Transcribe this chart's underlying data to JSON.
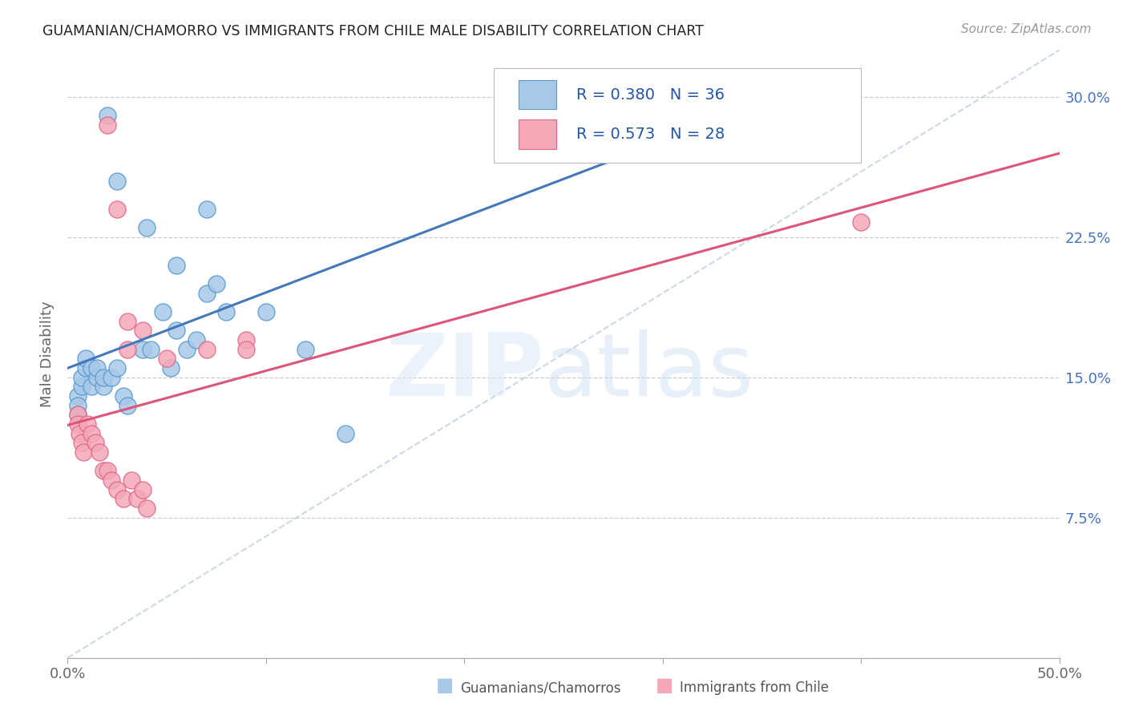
{
  "title": "GUAMANIAN/CHAMORRO VS IMMIGRANTS FROM CHILE MALE DISABILITY CORRELATION CHART",
  "source": "Source: ZipAtlas.com",
  "ylabel_label": "Male Disability",
  "xmin": 0.0,
  "xmax": 0.5,
  "ymin": 0.0,
  "ymax": 0.325,
  "yticks": [
    0.0,
    0.075,
    0.15,
    0.225,
    0.3
  ],
  "ytick_labels": [
    "",
    "7.5%",
    "15.0%",
    "22.5%",
    "30.0%"
  ],
  "xtick_positions": [
    0.0,
    0.1,
    0.2,
    0.3,
    0.4,
    0.5
  ],
  "xtick_labels_show": [
    "0.0%",
    "",
    "",
    "",
    "",
    "50.0%"
  ],
  "blue_color": "#a8c8e8",
  "pink_color": "#f4a8b8",
  "blue_edge": "#5599cc",
  "pink_edge": "#e06688",
  "blue_line_color": "#4477bb",
  "pink_line_color": "#dd5577",
  "diag_color": "#bbccdd",
  "legend_blue_R": "R = 0.380",
  "legend_blue_N": "N = 36",
  "legend_pink_R": "R = 0.573",
  "legend_pink_N": "N = 28",
  "bottom_blue_label": "Guamanians/Chamorros",
  "bottom_pink_label": "Immigrants from Chile",
  "blue_x": [
    0.02,
    0.04,
    0.025,
    0.055,
    0.07,
    0.005,
    0.005,
    0.005,
    0.007,
    0.007,
    0.009,
    0.009,
    0.012,
    0.012,
    0.015,
    0.015,
    0.018,
    0.018,
    0.022,
    0.025,
    0.028,
    0.03,
    0.038,
    0.042,
    0.048,
    0.052,
    0.055,
    0.06,
    0.065,
    0.07,
    0.075,
    0.08,
    0.1,
    0.12,
    0.14,
    0.28
  ],
  "blue_y": [
    0.29,
    0.23,
    0.255,
    0.21,
    0.24,
    0.14,
    0.135,
    0.13,
    0.145,
    0.15,
    0.155,
    0.16,
    0.145,
    0.155,
    0.15,
    0.155,
    0.145,
    0.15,
    0.15,
    0.155,
    0.14,
    0.135,
    0.165,
    0.165,
    0.185,
    0.155,
    0.175,
    0.165,
    0.17,
    0.195,
    0.2,
    0.185,
    0.185,
    0.165,
    0.12,
    0.305
  ],
  "pink_x": [
    0.02,
    0.025,
    0.038,
    0.03,
    0.03,
    0.005,
    0.005,
    0.006,
    0.007,
    0.008,
    0.01,
    0.012,
    0.014,
    0.016,
    0.018,
    0.02,
    0.022,
    0.025,
    0.028,
    0.032,
    0.035,
    0.04,
    0.05,
    0.07,
    0.09,
    0.09,
    0.038,
    0.4
  ],
  "pink_y": [
    0.285,
    0.24,
    0.175,
    0.165,
    0.18,
    0.13,
    0.125,
    0.12,
    0.115,
    0.11,
    0.125,
    0.12,
    0.115,
    0.11,
    0.1,
    0.1,
    0.095,
    0.09,
    0.085,
    0.095,
    0.085,
    0.08,
    0.16,
    0.165,
    0.17,
    0.165,
    0.09,
    0.233
  ]
}
